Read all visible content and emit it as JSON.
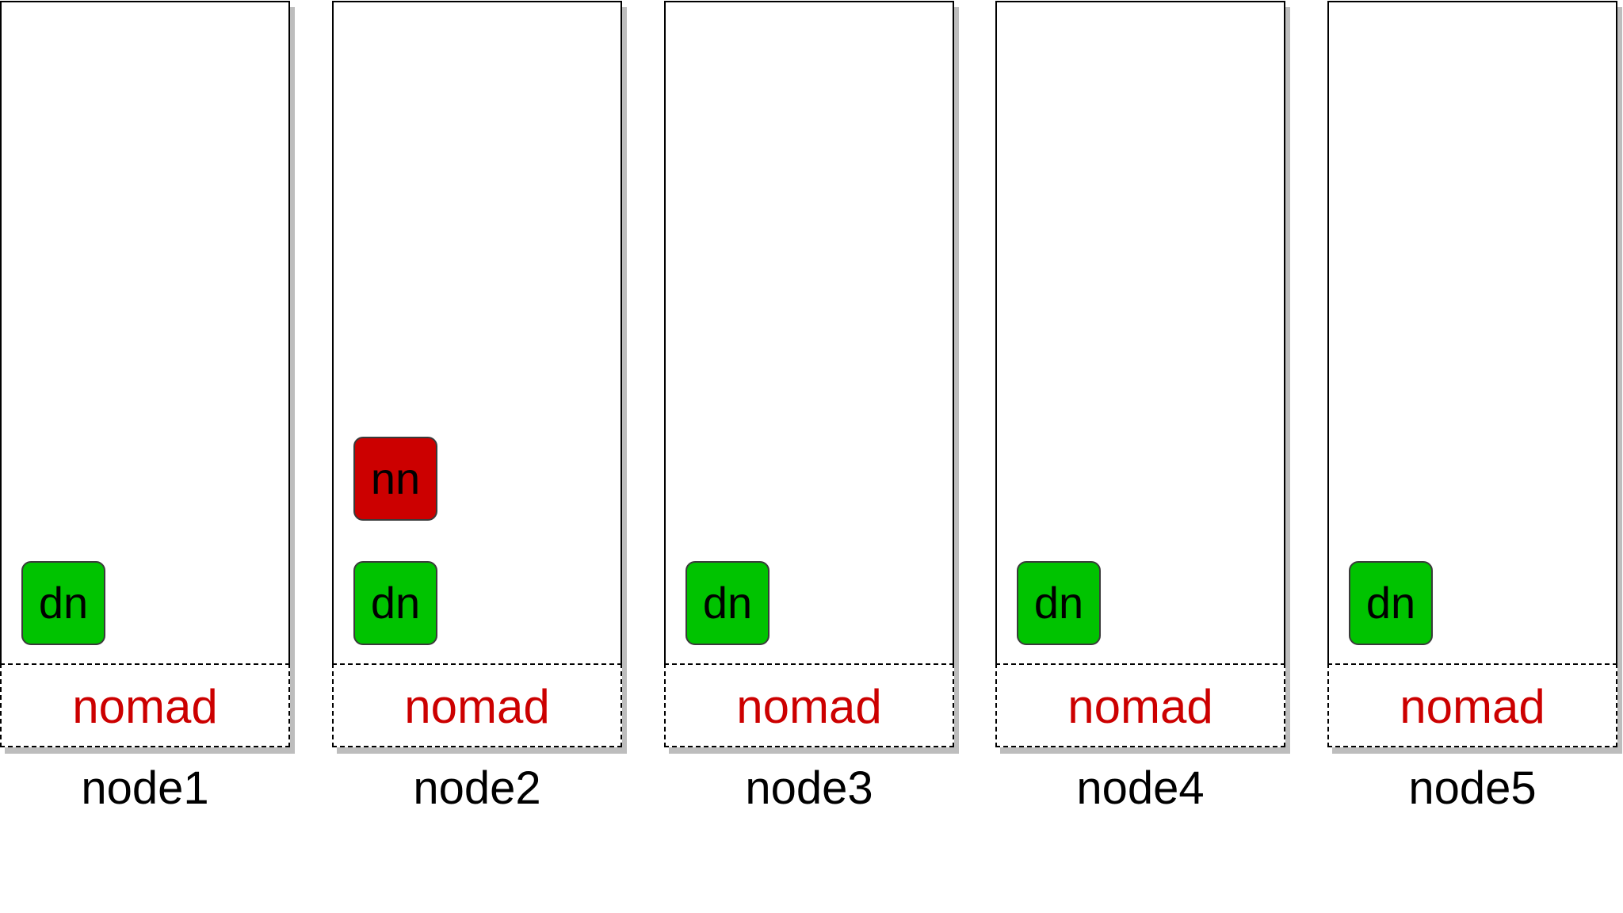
{
  "colors": {
    "task_green": "#00c300",
    "task_red": "#cc0000",
    "agent_text": "#cc0000"
  },
  "nodes": [
    {
      "name": "node1",
      "agent_label": "nomad",
      "tasks": [
        {
          "label": "dn",
          "kind": "datanode"
        }
      ]
    },
    {
      "name": "node2",
      "agent_label": "nomad",
      "tasks": [
        {
          "label": "nn",
          "kind": "namenode"
        },
        {
          "label": "dn",
          "kind": "datanode"
        }
      ]
    },
    {
      "name": "node3",
      "agent_label": "nomad",
      "tasks": [
        {
          "label": "dn",
          "kind": "datanode"
        }
      ]
    },
    {
      "name": "node4",
      "agent_label": "nomad",
      "tasks": [
        {
          "label": "dn",
          "kind": "datanode"
        }
      ]
    },
    {
      "name": "node5",
      "agent_label": "nomad",
      "tasks": [
        {
          "label": "dn",
          "kind": "datanode"
        }
      ]
    }
  ]
}
